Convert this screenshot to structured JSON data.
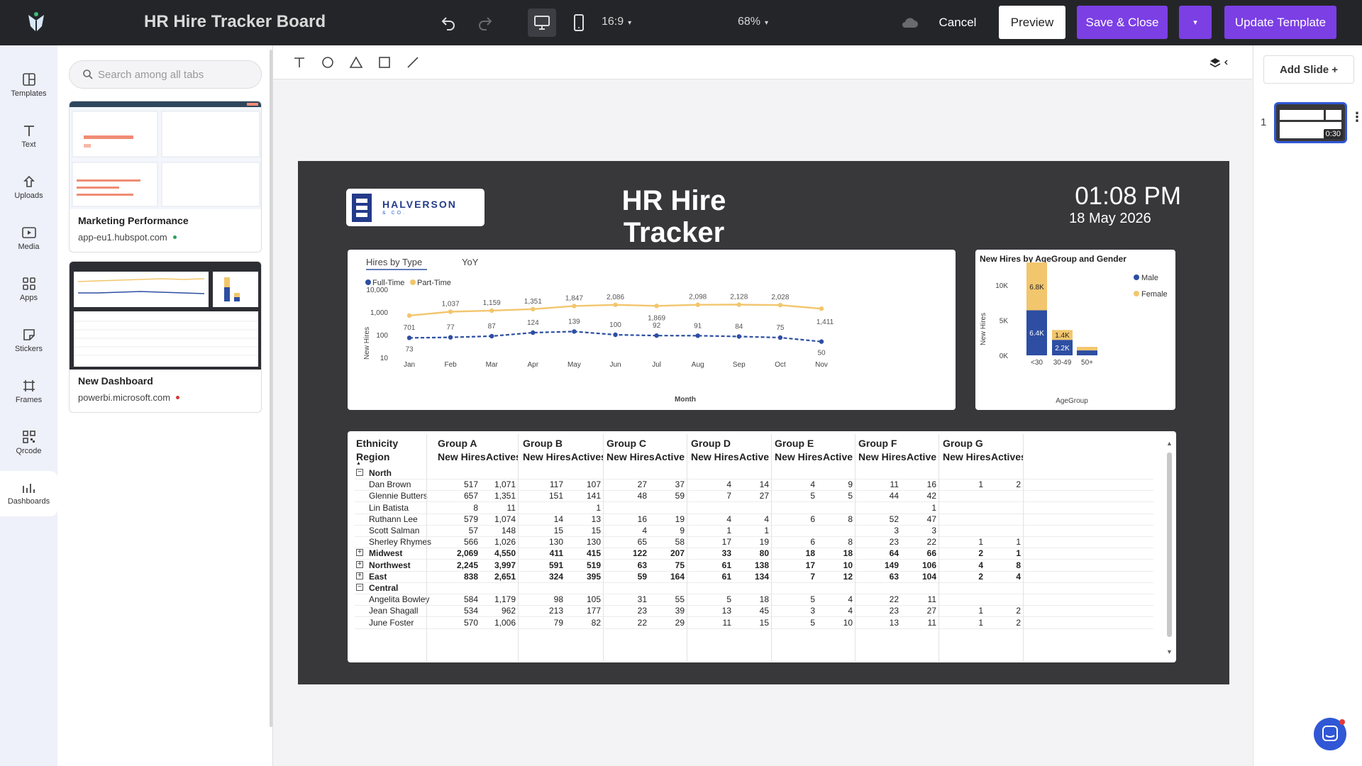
{
  "top": {
    "title": "HR Hire Tracker Board",
    "aspect": "16:9",
    "zoom": "68%",
    "cancel": "Cancel",
    "preview": "Preview",
    "save_close": "Save & Close",
    "update": "Update Template"
  },
  "rail": [
    {
      "label": "Templates",
      "icon": "templates-icon"
    },
    {
      "label": "Text",
      "icon": "text-icon"
    },
    {
      "label": "Uploads",
      "icon": "upload-icon"
    },
    {
      "label": "Media",
      "icon": "media-icon"
    },
    {
      "label": "Apps",
      "icon": "apps-icon"
    },
    {
      "label": "Stickers",
      "icon": "sticker-icon"
    },
    {
      "label": "Frames",
      "icon": "frame-icon"
    },
    {
      "label": "Qrcode",
      "icon": "qrcode-icon"
    },
    {
      "label": "Dashboards",
      "icon": "dashboard-icon"
    }
  ],
  "panel": {
    "search_placeholder": "Search among all tabs",
    "cards": [
      {
        "name": "Marketing Performance",
        "url": "app-eu1.hubspot.com",
        "status_color": "#2e9e5b"
      },
      {
        "name": "New Dashboard",
        "url": "powerbi.microsoft.com",
        "status_color": "#d23b3b"
      }
    ]
  },
  "right": {
    "add_slide": "Add Slide +",
    "slide_number": "1",
    "slide_duration": "0:30"
  },
  "slide": {
    "brand": "HALVERSON",
    "brand_sub": "& CO.",
    "title": "HR Hire Tracker",
    "time": "01:08 PM",
    "date": "18 May 2026"
  },
  "line_chart": {
    "tabs": [
      "Hires by Type",
      "YoY"
    ],
    "ylabel": "New Hires",
    "xlabel": "Month",
    "chart_data": {
      "type": "line",
      "x": [
        "Jan",
        "Feb",
        "Mar",
        "Apr",
        "May",
        "Jun",
        "Jul",
        "Aug",
        "Sep",
        "Oct",
        "Nov"
      ],
      "yscale": "log",
      "yticks": [
        "10,000",
        "1,000",
        "100",
        "10"
      ],
      "series": [
        {
          "name": "Full-Time",
          "color": "#2d4ea2",
          "values": [
            73,
            77,
            87,
            124,
            139,
            100,
            92,
            91,
            84,
            75,
            50
          ]
        },
        {
          "name": "Part-Time",
          "color": "#f2c66d",
          "values": [
            701,
            1037,
            1159,
            1351,
            1847,
            2086,
            1869,
            2098,
            2128,
            2028,
            1411
          ]
        }
      ]
    }
  },
  "bar_chart": {
    "title": "New Hires by AgeGroup and Gender",
    "ylabel": "New Hires",
    "xlabel": "AgeGroup",
    "chart_data": {
      "type": "bar",
      "stacked": true,
      "categories": [
        "<30",
        "30-49",
        "50+"
      ],
      "yticks": [
        "10K",
        "5K",
        "0K"
      ],
      "ylim": [
        0,
        13000
      ],
      "series": [
        {
          "name": "Male",
          "color": "#2d4ea2",
          "values": [
            6400,
            2200,
            700
          ]
        },
        {
          "name": "Female",
          "color": "#f2c66d",
          "values": [
            6800,
            1400,
            500
          ]
        }
      ],
      "labels": [
        [
          "6.4K",
          "2.2K",
          ""
        ],
        [
          "6.8K",
          "1.4K",
          ""
        ]
      ]
    }
  },
  "table": {
    "eth_label": "Ethnicity",
    "region_label": "Region",
    "groups": [
      "Group A",
      "Group B",
      "Group C",
      "Group D",
      "Group E",
      "Group F",
      "Group G"
    ],
    "sub": [
      [
        "New Hires",
        "Actives"
      ],
      [
        "New Hires",
        "Actives"
      ],
      [
        "New Hires",
        "Active"
      ],
      [
        "New Hires",
        "Active"
      ],
      [
        "New Hires",
        "Active"
      ],
      [
        "New Hires",
        "Active"
      ],
      [
        "New Hires",
        "Actives"
      ]
    ],
    "rows": [
      {
        "label": "North",
        "type": "expanded",
        "vals": [
          "",
          "",
          "",
          "",
          "",
          "",
          "",
          "",
          "",
          "",
          "",
          "",
          "",
          ""
        ]
      },
      {
        "label": "Dan Brown",
        "type": "child",
        "vals": [
          "517",
          "1,071",
          "117",
          "107",
          "27",
          "37",
          "4",
          "14",
          "4",
          "9",
          "11",
          "16",
          "1",
          "2"
        ]
      },
      {
        "label": "Glennie Butters",
        "type": "child",
        "vals": [
          "657",
          "1,351",
          "151",
          "141",
          "48",
          "59",
          "7",
          "27",
          "5",
          "5",
          "44",
          "42",
          "",
          ""
        ]
      },
      {
        "label": "Lin Batista",
        "type": "child",
        "vals": [
          "8",
          "11",
          "",
          "1",
          "",
          "",
          "",
          "",
          "",
          "",
          "",
          "1",
          "",
          ""
        ]
      },
      {
        "label": "Ruthann Lee",
        "type": "child",
        "vals": [
          "579",
          "1,074",
          "14",
          "13",
          "16",
          "19",
          "4",
          "4",
          "6",
          "8",
          "52",
          "47",
          "",
          ""
        ]
      },
      {
        "label": "Scott Salman",
        "type": "child",
        "vals": [
          "57",
          "148",
          "15",
          "15",
          "4",
          "9",
          "1",
          "1",
          "",
          "",
          "3",
          "3",
          "",
          ""
        ]
      },
      {
        "label": "Sherley Rhymes",
        "type": "child",
        "vals": [
          "566",
          "1,026",
          "130",
          "130",
          "65",
          "58",
          "17",
          "19",
          "6",
          "8",
          "23",
          "22",
          "1",
          "1"
        ]
      },
      {
        "label": "Midwest",
        "type": "collapsed",
        "vals": [
          "2,069",
          "4,550",
          "411",
          "415",
          "122",
          "207",
          "33",
          "80",
          "18",
          "18",
          "64",
          "66",
          "2",
          "1"
        ]
      },
      {
        "label": "Northwest",
        "type": "collapsed",
        "vals": [
          "2,245",
          "3,997",
          "591",
          "519",
          "63",
          "75",
          "61",
          "138",
          "17",
          "10",
          "149",
          "106",
          "4",
          "8"
        ]
      },
      {
        "label": "East",
        "type": "collapsed",
        "vals": [
          "838",
          "2,651",
          "324",
          "395",
          "59",
          "164",
          "61",
          "134",
          "7",
          "12",
          "63",
          "104",
          "2",
          "4"
        ]
      },
      {
        "label": "Central",
        "type": "expanded",
        "vals": [
          "",
          "",
          "",
          "",
          "",
          "",
          "",
          "",
          "",
          "",
          "",
          "",
          "",
          ""
        ]
      },
      {
        "label": "Angelita Bowley",
        "type": "child",
        "vals": [
          "584",
          "1,179",
          "98",
          "105",
          "31",
          "55",
          "5",
          "18",
          "5",
          "4",
          "22",
          "11",
          "",
          ""
        ]
      },
      {
        "label": "Jean Shagall",
        "type": "child",
        "vals": [
          "534",
          "962",
          "213",
          "177",
          "23",
          "39",
          "13",
          "45",
          "3",
          "4",
          "23",
          "27",
          "1",
          "2"
        ]
      },
      {
        "label": "June Foster",
        "type": "child",
        "vals": [
          "570",
          "1,006",
          "79",
          "82",
          "22",
          "29",
          "11",
          "15",
          "5",
          "10",
          "13",
          "11",
          "1",
          "2"
        ]
      }
    ]
  },
  "colors": {
    "accent": "#7b3fe4",
    "topbar": "#242529",
    "slide_bg": "#38383b"
  }
}
